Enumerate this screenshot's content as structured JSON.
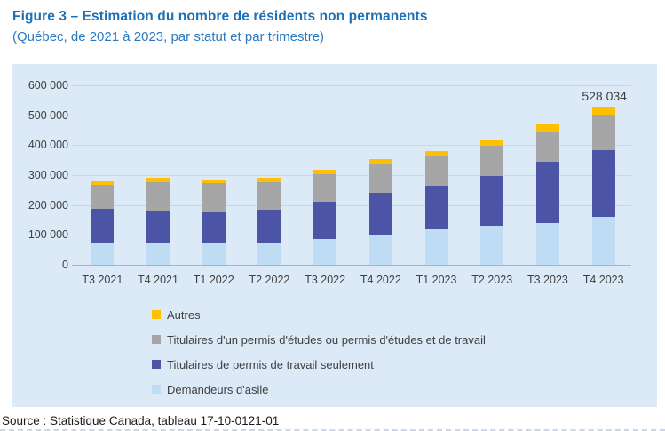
{
  "header": {
    "title": "Figure 3 – Estimation du nombre de résidents non permanents",
    "subtitle": "(Québec, de 2021 à 2023, par statut et par trimestre)"
  },
  "chart_data": {
    "type": "bar",
    "stacked": true,
    "title": "Estimation du nombre de résidents non permanents",
    "subtitle": "Québec, de 2021 à 2023, par statut et par trimestre",
    "categories": [
      "T3 2021",
      "T4 2021",
      "T1 2022",
      "T2 2022",
      "T3 2022",
      "T4 2022",
      "T1 2023",
      "T2 2023",
      "T3 2023",
      "T4 2023"
    ],
    "series": [
      {
        "name": "Demandeurs d'asile",
        "color": "#bedcf3",
        "values": [
          73000,
          70000,
          71000,
          75000,
          87000,
          99000,
          119000,
          131000,
          140000,
          159000
        ]
      },
      {
        "name": "Titulaires de permis de travail seulement",
        "color": "#4c55a5",
        "values": [
          113000,
          112000,
          108000,
          110000,
          124000,
          142000,
          145000,
          166000,
          205000,
          224000
        ]
      },
      {
        "name": "Titulaires d'un permis d'études ou permis d'études et de travail",
        "color": "#a6a6a6",
        "values": [
          80000,
          93000,
          93000,
          90000,
          92000,
          96000,
          101000,
          102000,
          98000,
          119000
        ]
      },
      {
        "name": "Autres",
        "color": "#ffc000",
        "values": [
          14000,
          16000,
          14000,
          15000,
          15000,
          15000,
          16000,
          21000,
          25000,
          26034
        ]
      }
    ],
    "totals": [
      280000,
      291000,
      286000,
      290000,
      318000,
      352000,
      381000,
      420000,
      468000,
      528034
    ],
    "ylim": [
      0,
      600000
    ],
    "yticks": [
      "0",
      "100 000",
      "200 000",
      "300 000",
      "400 000",
      "500 000",
      "600 000"
    ],
    "grid": true,
    "panel_background": "#dce9f7",
    "legend_position": "bottom-left",
    "legend": [
      {
        "label": "Autres",
        "color": "#ffc000"
      },
      {
        "label": "Titulaires d'un permis d'études ou permis d'études et de travail",
        "color": "#a6a6a6"
      },
      {
        "label": "Titulaires de permis de travail seulement",
        "color": "#4c55a5"
      },
      {
        "label": "Demandeurs d'asile",
        "color": "#bedcf3"
      }
    ],
    "annotation": {
      "text": "528 034",
      "category": "T4 2023"
    }
  },
  "footer": {
    "source": "Source : Statistique Canada, tableau 17-10-0121-01"
  }
}
